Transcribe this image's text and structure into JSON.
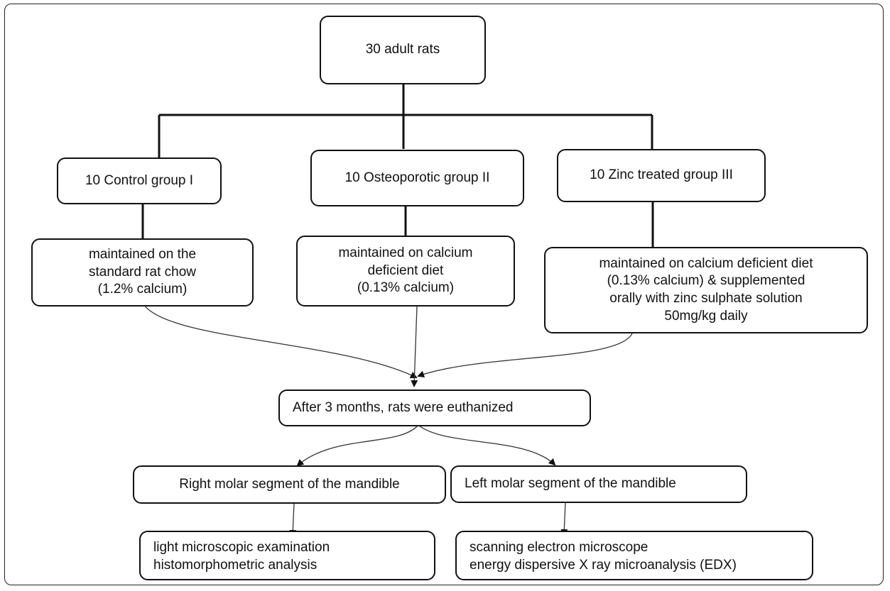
{
  "diagram": {
    "root": "30 adult rats",
    "groups": [
      {
        "name": "10  Control group I",
        "diet": "maintained on  the\nstandard rat chow\n(1.2% calcium)"
      },
      {
        "name": "10  Osteoporotic group II",
        "diet": "maintained on calcium\ndeficient diet\n(0.13% calcium)"
      },
      {
        "name": "10  Zinc treated group III",
        "diet": "maintained on calcium deficient diet\n(0.13% calcium) & supplemented\norally with zinc sulphate solution\n50mg/kg daily"
      }
    ],
    "euthanasia": "After 3 months, rats were euthanized",
    "segments": [
      {
        "name": "Right molar segment of the mandible",
        "analysis": "light microscopic examination\nhistomorphometric analysis"
      },
      {
        "name": "Left molar segment of the mandible",
        "analysis": "scanning electron microscope\nenergy dispersive X ray microanalysis (EDX)"
      }
    ]
  }
}
